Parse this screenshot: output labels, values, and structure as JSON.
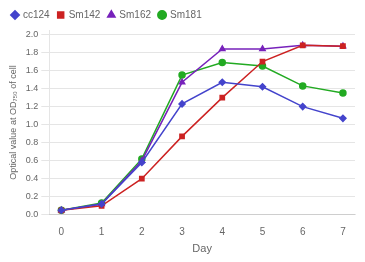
{
  "chart_data": {
    "type": "line",
    "x_label": "Day",
    "y_label": "Optical value at OD₇₅₀ of cell",
    "x": [
      0,
      1,
      2,
      3,
      4,
      5,
      6,
      7
    ],
    "series": [
      {
        "name": "cc124",
        "color": "#4444cc",
        "marker": "diamond",
        "values": [
          0.05,
          0.12,
          0.58,
          1.23,
          1.47,
          1.42,
          1.2,
          1.07
        ]
      },
      {
        "name": "Sm142",
        "color": "#cc2222",
        "marker": "square",
        "values": [
          0.05,
          0.1,
          0.4,
          0.87,
          1.3,
          1.7,
          1.88,
          1.87
        ]
      },
      {
        "name": "Sm162",
        "color": "#7722bb",
        "marker": "triangle",
        "values": [
          0.05,
          0.12,
          0.6,
          1.47,
          1.84,
          1.84,
          1.88,
          1.87
        ]
      },
      {
        "name": "Sm181",
        "color": "#22aa22",
        "marker": "circle",
        "values": [
          0.05,
          0.13,
          0.62,
          1.55,
          1.69,
          1.65,
          1.43,
          1.35
        ]
      }
    ],
    "xlim": [
      -0.3,
      7.3
    ],
    "xticks": [
      0,
      1,
      2,
      3,
      4,
      5,
      6,
      7
    ],
    "ylim": [
      0,
      2.05
    ],
    "yticks": [
      {
        "value": 0,
        "label": "0.0"
      },
      0.2,
      0.4,
      0.6,
      0.8,
      {
        "value": 1,
        "label": "1.0"
      },
      1.2,
      1.4,
      1.6,
      1.8,
      {
        "value": 2,
        "label": "2.0"
      }
    ],
    "grid": "y",
    "legend": "upper left"
  }
}
